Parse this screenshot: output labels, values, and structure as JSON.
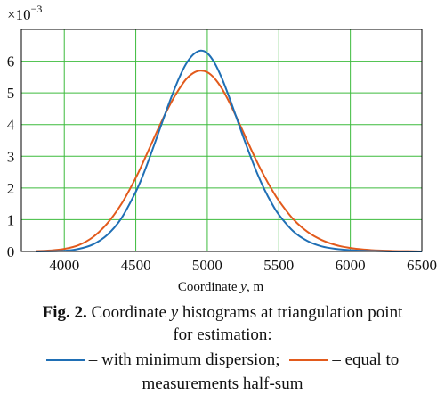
{
  "chart_data": {
    "type": "line",
    "title": "",
    "xlabel_prefix": "Coordinate ",
    "xlabel_var": "y",
    "xlabel_suffix": ", m",
    "ylabel": "",
    "y_scale_base": "×10",
    "y_scale_exp": "−3",
    "xlim": [
      3700,
      6500
    ],
    "ylim": [
      0,
      7
    ],
    "x_ticks": [
      4000,
      4500,
      5000,
      5500,
      6000,
      6500
    ],
    "y_ticks": [
      0,
      1,
      2,
      3,
      4,
      5,
      6
    ],
    "grid": true,
    "colors": {
      "grid": "#3dbb3d",
      "frame": "#000000",
      "series_blue": "#1f6fb5",
      "series_orange": "#e25a1c"
    },
    "series": [
      {
        "name": "with minimum dispersion",
        "color": "#1f6fb5",
        "x": [
          3800,
          4000,
          4100,
          4200,
          4300,
          4400,
          4500,
          4550,
          4600,
          4650,
          4700,
          4750,
          4800,
          4850,
          4900,
          4950,
          5000,
          5050,
          5100,
          5150,
          5200,
          5250,
          5300,
          5350,
          5400,
          5450,
          5500,
          5600,
          5700,
          5800,
          5900,
          6000,
          6100,
          6200,
          6300,
          6400,
          6500
        ],
        "values": [
          0.0,
          0.02,
          0.08,
          0.22,
          0.52,
          1.05,
          1.88,
          2.4,
          3.0,
          3.63,
          4.27,
          4.88,
          5.44,
          5.9,
          6.2,
          6.33,
          6.25,
          5.95,
          5.48,
          4.9,
          4.27,
          3.63,
          3.02,
          2.45,
          1.95,
          1.52,
          1.16,
          0.64,
          0.33,
          0.16,
          0.08,
          0.04,
          0.02,
          0.01,
          0.0,
          0.0,
          0.0
        ]
      },
      {
        "name": "equal to measurements half-sum",
        "color": "#e25a1c",
        "x": [
          3800,
          3900,
          4000,
          4100,
          4200,
          4300,
          4400,
          4500,
          4550,
          4600,
          4650,
          4700,
          4750,
          4800,
          4850,
          4900,
          4950,
          5000,
          5050,
          5100,
          5150,
          5200,
          5250,
          5300,
          5350,
          5400,
          5450,
          5500,
          5600,
          5700,
          5800,
          5900,
          6000,
          6100,
          6200,
          6300,
          6400,
          6500
        ],
        "values": [
          0.01,
          0.03,
          0.08,
          0.2,
          0.45,
          0.88,
          1.5,
          2.32,
          2.8,
          3.3,
          3.8,
          4.28,
          4.72,
          5.1,
          5.42,
          5.62,
          5.7,
          5.65,
          5.46,
          5.15,
          4.74,
          4.27,
          3.78,
          3.28,
          2.8,
          2.36,
          1.96,
          1.6,
          1.02,
          0.62,
          0.36,
          0.2,
          0.11,
          0.06,
          0.03,
          0.015,
          0.01,
          0.0
        ]
      }
    ]
  },
  "caption": {
    "fig_label": "Fig. 2.",
    "line1_rest_before": " Coordinate ",
    "line1_var": "y",
    "line1_rest_after": " histograms at triangulation point",
    "line2": "for estimation:",
    "legend_blue": "– with minimum dispersion;",
    "legend_orange": "– equal to",
    "line4": "measurements half-sum"
  }
}
